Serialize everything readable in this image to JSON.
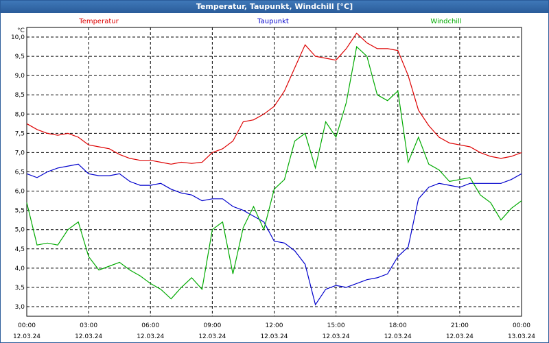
{
  "window": {
    "title": "Temperatur, Taupunkt, Windchill [°C]"
  },
  "chart_data": {
    "type": "line",
    "unit_label": "°C",
    "ylim": [
      2.75,
      10.25
    ],
    "yticks": [
      3.0,
      3.5,
      4.0,
      4.5,
      5.0,
      5.5,
      6.0,
      6.5,
      7.0,
      7.5,
      8.0,
      8.5,
      9.0,
      9.5,
      10.0
    ],
    "ytick_labels": [
      "3,0",
      "3,5",
      "4,0",
      "4,5",
      "5,0",
      "5,5",
      "6,0",
      "6,5",
      "7,0",
      "7,5",
      "8,0",
      "8,5",
      "9,0",
      "9,5",
      "10,0"
    ],
    "xlim": [
      0,
      24
    ],
    "xticks": [
      {
        "x": 0,
        "time": "00:00",
        "date": "12.03.24"
      },
      {
        "x": 3,
        "time": "03:00",
        "date": "12.03.24"
      },
      {
        "x": 6,
        "time": "06:00",
        "date": "12.03.24"
      },
      {
        "x": 9,
        "time": "09:00",
        "date": "12.03.24"
      },
      {
        "x": 12,
        "time": "12:00",
        "date": "12.03.24"
      },
      {
        "x": 15,
        "time": "15:00",
        "date": "12.03.24"
      },
      {
        "x": 18,
        "time": "18:00",
        "date": "12.03.24"
      },
      {
        "x": 21,
        "time": "21:00",
        "date": "12.03.24"
      },
      {
        "x": 24,
        "time": "00:00",
        "date": "13.03.24"
      }
    ],
    "grid": true,
    "series": [
      {
        "name": "Temperatur",
        "color": "#dd0000",
        "x": [
          0,
          0.5,
          1,
          1.5,
          2,
          2.5,
          3,
          3.5,
          4,
          4.5,
          5,
          5.5,
          6,
          6.5,
          7,
          7.5,
          8,
          8.5,
          9,
          9.5,
          10,
          10.5,
          11,
          11.5,
          12,
          12.5,
          13,
          13.5,
          14,
          14.5,
          15,
          15.5,
          16,
          16.5,
          17,
          17.5,
          18,
          18.5,
          19,
          19.5,
          20,
          20.5,
          21,
          21.5,
          22,
          22.5,
          23,
          23.5,
          24
        ],
        "values": [
          7.75,
          7.6,
          7.5,
          7.45,
          7.5,
          7.4,
          7.2,
          7.15,
          7.1,
          6.95,
          6.85,
          6.8,
          6.8,
          6.75,
          6.7,
          6.75,
          6.72,
          6.75,
          7.0,
          7.1,
          7.3,
          7.8,
          7.85,
          8.0,
          8.2,
          8.6,
          9.2,
          9.8,
          9.5,
          9.45,
          9.4,
          9.7,
          10.1,
          9.85,
          9.7,
          9.7,
          9.65,
          9.0,
          8.1,
          7.7,
          7.4,
          7.25,
          7.2,
          7.15,
          7.0,
          6.9,
          6.85,
          6.9,
          7.0
        ]
      },
      {
        "name": "Taupunkt",
        "color": "#0000cc",
        "x": [
          0,
          0.5,
          1,
          1.5,
          2,
          2.5,
          3,
          3.5,
          4,
          4.5,
          5,
          5.5,
          6,
          6.5,
          7,
          7.5,
          8,
          8.5,
          9,
          9.5,
          10,
          10.5,
          11,
          11.5,
          12,
          12.5,
          13,
          13.5,
          14,
          14.5,
          15,
          15.5,
          16,
          16.5,
          17,
          17.5,
          18,
          18.5,
          19,
          19.5,
          20,
          20.5,
          21,
          21.5,
          22,
          22.5,
          23,
          23.5,
          24
        ],
        "values": [
          6.45,
          6.35,
          6.5,
          6.6,
          6.65,
          6.7,
          6.45,
          6.4,
          6.4,
          6.45,
          6.25,
          6.15,
          6.15,
          6.2,
          6.05,
          5.95,
          5.9,
          5.75,
          5.8,
          5.8,
          5.6,
          5.5,
          5.35,
          5.2,
          4.7,
          4.65,
          4.45,
          4.1,
          3.05,
          3.45,
          3.55,
          3.5,
          3.6,
          3.7,
          3.75,
          3.85,
          4.3,
          4.55,
          5.8,
          6.1,
          6.2,
          6.15,
          6.1,
          6.2,
          6.2,
          6.2,
          6.2,
          6.3,
          6.45
        ]
      },
      {
        "name": "Windchill",
        "color": "#00aa00",
        "x": [
          0,
          0.5,
          1,
          1.5,
          2,
          2.5,
          3,
          3.5,
          4,
          4.5,
          5,
          5.5,
          6,
          6.5,
          7,
          7.5,
          8,
          8.5,
          9,
          9.5,
          10,
          10.5,
          11,
          11.5,
          12,
          12.5,
          13,
          13.5,
          14,
          14.5,
          15,
          15.5,
          16,
          16.5,
          17,
          17.5,
          18,
          18.5,
          19,
          19.5,
          20,
          20.5,
          21,
          21.5,
          22,
          22.5,
          23,
          23.5,
          24
        ],
        "values": [
          5.7,
          4.6,
          4.65,
          4.6,
          5.0,
          5.2,
          4.3,
          3.95,
          4.05,
          4.15,
          3.95,
          3.8,
          3.6,
          3.45,
          3.2,
          3.5,
          3.75,
          3.45,
          5.0,
          5.2,
          3.85,
          5.05,
          5.6,
          5.0,
          6.05,
          6.3,
          7.3,
          7.5,
          6.6,
          7.8,
          7.4,
          8.3,
          9.75,
          9.5,
          8.5,
          8.35,
          8.6,
          6.75,
          7.4,
          6.7,
          6.55,
          6.25,
          6.3,
          6.35,
          5.9,
          5.7,
          5.25,
          5.55,
          5.75
        ]
      }
    ]
  }
}
